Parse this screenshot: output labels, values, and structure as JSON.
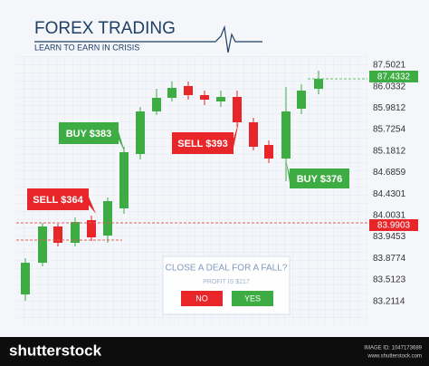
{
  "header": {
    "title": "FOREX TRADING",
    "subtitle": "LEARN TO EARN IN CRISIS"
  },
  "price_scale": [
    "87.5021",
    "86.0332",
    "85.9812",
    "85.7254",
    "85.1812",
    "84.6859",
    "84.4301",
    "84.0031",
    "83.9453",
    "83.8774",
    "83.5123",
    "83.2114"
  ],
  "price_markers": {
    "high": "87.4332",
    "low": "83.9903"
  },
  "trade_tags": [
    {
      "label": "SELL $364"
    },
    {
      "label": "BUY $383"
    },
    {
      "label": "SELL $393"
    },
    {
      "label": "BUY $376"
    }
  ],
  "dialog": {
    "question": "CLOSE A DEAL FOR A FALL?",
    "profit": "PROFIT IS $217",
    "no": "NO",
    "yes": "YES"
  },
  "footer": {
    "brand": "shutterstock",
    "image_id": "IMAGE ID: 1047173689",
    "site": "www.shutterstock.com"
  }
}
